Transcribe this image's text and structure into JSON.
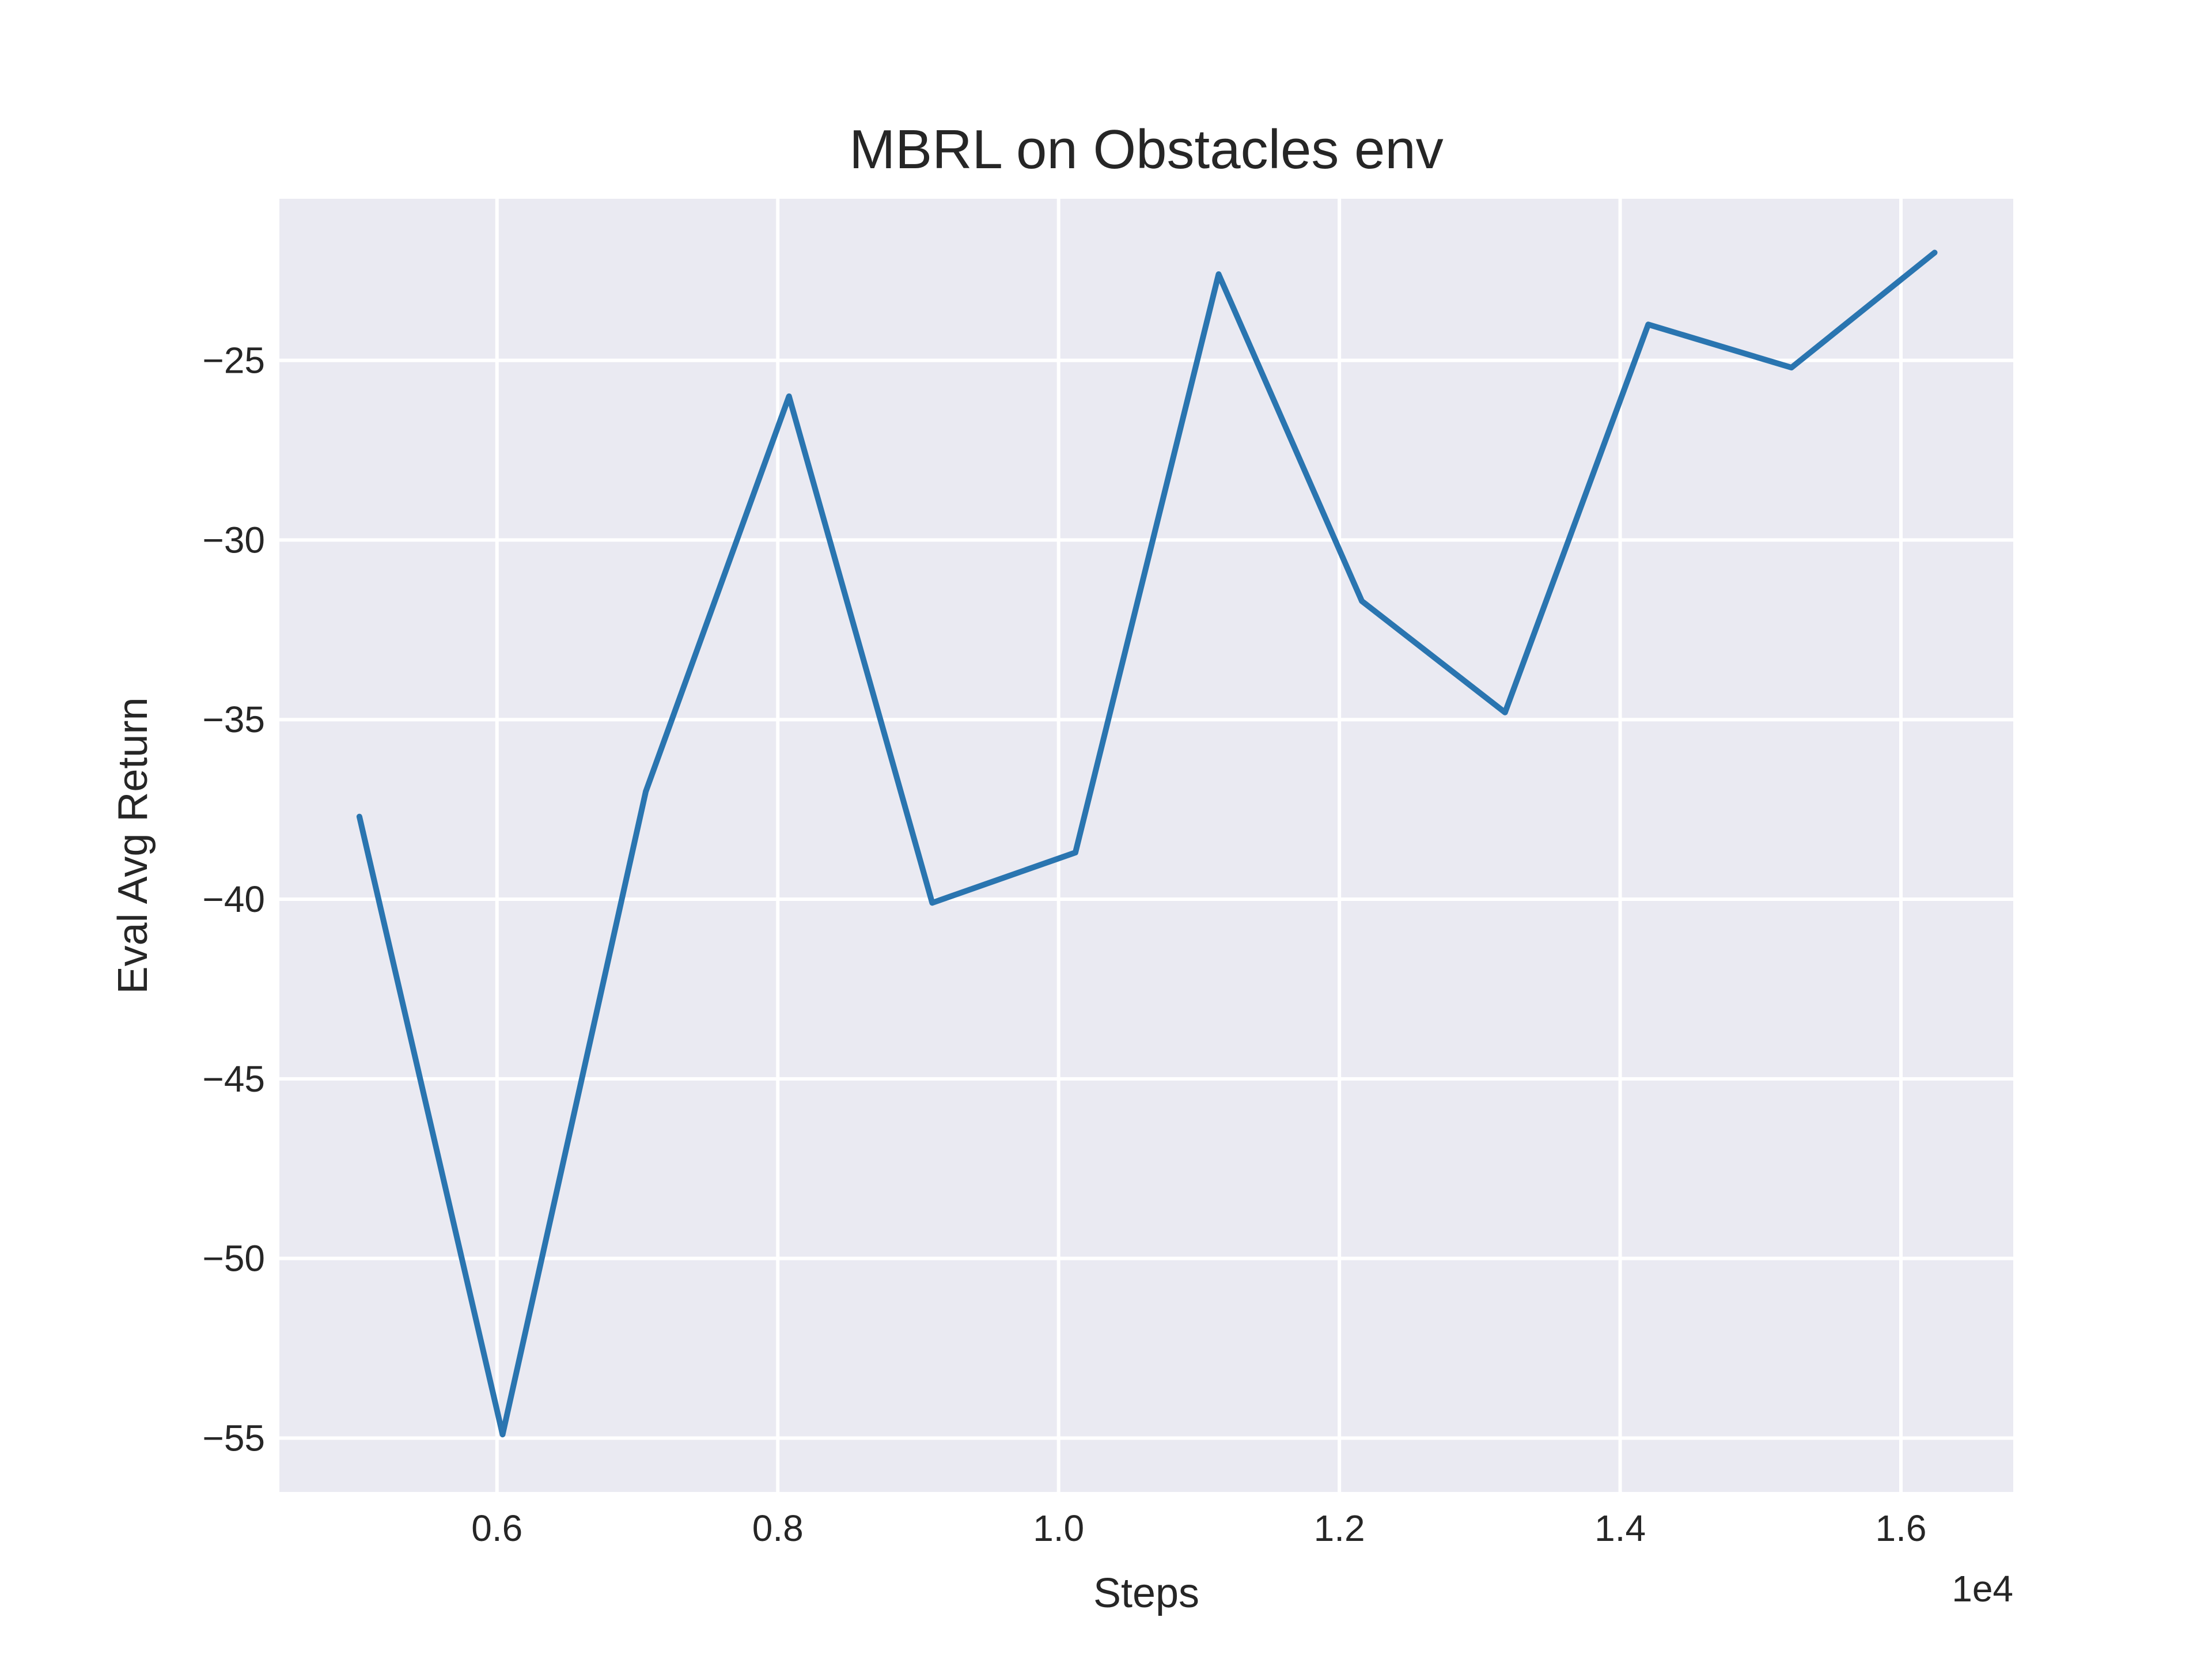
{
  "chart_data": {
    "type": "line",
    "title": "MBRL on Obstacles env",
    "xlabel": "Steps",
    "ylabel": "Eval Avg Return",
    "x_offset_label": "1e4",
    "xlim": [
      4450,
      16800
    ],
    "ylim": [
      -56.5,
      -20.5
    ],
    "xticks": [
      6000,
      8000,
      10000,
      12000,
      14000,
      16000
    ],
    "xtick_labels": [
      "0.6",
      "0.8",
      "1.0",
      "1.2",
      "1.4",
      "1.6"
    ],
    "yticks": [
      -55,
      -50,
      -45,
      -40,
      -35,
      -30,
      -25
    ],
    "ytick_labels": [
      "−55",
      "−50",
      "−45",
      "−40",
      "−35",
      "−30",
      "−25"
    ],
    "grid": true,
    "series": [
      {
        "color": "#2a75b0",
        "x": [
          5020,
          6040,
          7060,
          8080,
          9100,
          10120,
          11140,
          12160,
          13180,
          14200,
          15220,
          16240
        ],
        "y": [
          -37.7,
          -54.9,
          -37.0,
          -26.0,
          -40.1,
          -38.7,
          -22.6,
          -31.7,
          -34.8,
          -24.0,
          -25.2,
          -22.0
        ]
      }
    ]
  }
}
